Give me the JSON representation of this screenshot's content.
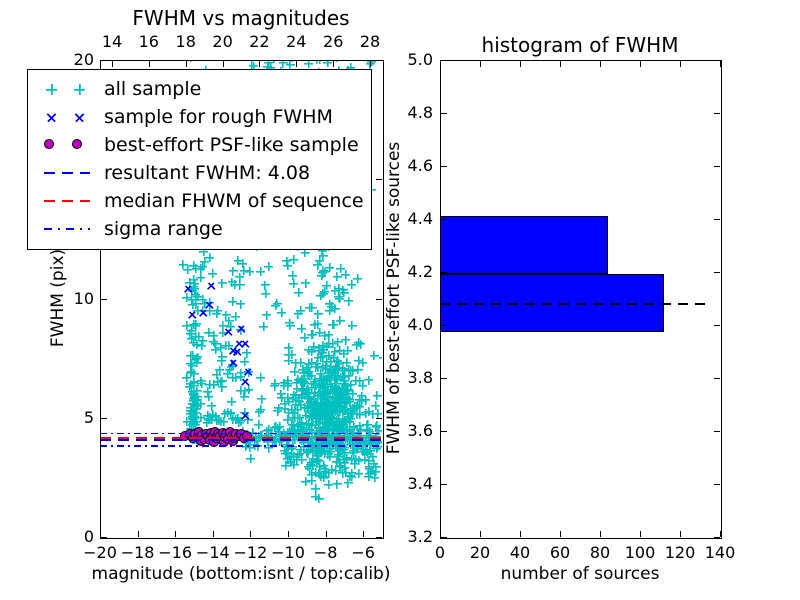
{
  "figure": {
    "background": "#ffffff"
  },
  "colors": {
    "all_sample": "#00bfbf",
    "rough_sample": "#0000ff",
    "psf_sample": "#bf00bf",
    "resultant_line": "#0000ff",
    "median_line": "#ff0000",
    "sigma_line": "#0000ff",
    "hist_bar": "#0000ff",
    "hist_marker_line": "#000000",
    "frame": "#000000"
  },
  "left_plot": {
    "title": "FWHM vs magnitudes",
    "xlabel": "magnitude (bottom:isnt / top:calib)",
    "ylabel": "FWHM (pix)",
    "xticks": {
      "values": [
        -20,
        -18,
        -16,
        -14,
        -12,
        -10,
        -8,
        -6
      ],
      "labels": [
        "−20",
        "−18",
        "−16",
        "−14",
        "−12",
        "−10",
        "−8",
        "−6"
      ]
    },
    "top_xticks": {
      "values": [
        14,
        16,
        18,
        20,
        22,
        24,
        26,
        28
      ],
      "labels": [
        "14",
        "16",
        "18",
        "20",
        "22",
        "24",
        "26",
        "28"
      ]
    },
    "yticks": {
      "values": [
        0,
        5,
        10,
        15,
        20
      ],
      "labels": [
        "0",
        "5",
        "10",
        "15",
        "20"
      ]
    },
    "legend": {
      "items": [
        {
          "marker": "plus2",
          "color": "#00bfbf",
          "label": "all sample"
        },
        {
          "marker": "x2",
          "color": "#0000ff",
          "label": "sample for rough FWHM"
        },
        {
          "marker": "dot2",
          "color": "#bf00bf",
          "label": "best-effort PSF-like sample"
        },
        {
          "marker": "dash",
          "color": "#0000ff",
          "label": "resultant FWHM: 4.08"
        },
        {
          "marker": "dash",
          "color": "#ff0000",
          "label": "median FHWM of sequence"
        },
        {
          "marker": "dashdot",
          "color": "#0000ff",
          "label": "sigma range"
        }
      ]
    }
  },
  "right_plot": {
    "title": "histogram of FWHM",
    "xlabel": "number of sources",
    "ylabel": "FWHM of best-effort PSF-like sources",
    "xticks": {
      "values": [
        0,
        20,
        40,
        60,
        80,
        100,
        120,
        140
      ],
      "labels": [
        "0",
        "20",
        "40",
        "60",
        "80",
        "100",
        "120",
        "140"
      ]
    },
    "yticks": {
      "values": [
        3.2,
        3.4,
        3.6,
        3.8,
        4.0,
        4.2,
        4.4,
        4.6,
        4.8,
        5.0
      ],
      "labels": [
        "3.2",
        "3.4",
        "3.6",
        "3.8",
        "4.0",
        "4.2",
        "4.4",
        "4.6",
        "4.8",
        "5.0"
      ]
    }
  },
  "chart_data": [
    {
      "type": "scatter",
      "title": "FWHM vs magnitudes",
      "xlabel": "magnitude (bottom:isnt / top:calib)",
      "ylabel": "FWHM (pix)",
      "xlim": [
        -20,
        -5
      ],
      "ylim": [
        0,
        20
      ],
      "top_xlim": [
        13.35,
        28.65
      ],
      "series": [
        {
          "name": "all sample",
          "marker": "plus",
          "color": "#00bfbf",
          "seed": 7,
          "generated_clusters": [
            {
              "n": 95,
              "mag": {
                "dist": "normal",
                "mean": -15.02,
                "sd": 0.13
              },
              "fwhm": {
                "dist": "power",
                "min": 4.1,
                "range": 8.6,
                "exp": 2.0
              }
            },
            {
              "n": 120,
              "mag": {
                "dist": "uniform",
                "min": -15.3,
                "max": -9.6
              },
              "fwhm": {
                "dist": "uniform",
                "min": 5,
                "max": 20.2
              }
            },
            {
              "n": 80,
              "mag": {
                "dist": "normal",
                "mean": -13.8,
                "sd": 0.9
              },
              "fwhm": {
                "dist": "power",
                "min": 4.8,
                "range": 7,
                "exp": 1.8
              }
            },
            {
              "n": 430,
              "mag": {
                "dist": "normal",
                "mean": -7.9,
                "sd": 0.95
              },
              "fwhm": {
                "dist": "normal",
                "mean": 5.4,
                "sd": 1.15
              }
            },
            {
              "n": 130,
              "mag": {
                "dist": "normal",
                "mean": -7.6,
                "sd": 0.6
              },
              "fwhm": {
                "dist": "uniform",
                "min": 6,
                "max": 20.3
              }
            },
            {
              "n": 110,
              "mag": {
                "dist": "normal",
                "mean": -8.3,
                "sd": 1.1
              },
              "fwhm": {
                "dist": "power",
                "min": 5.2,
                "range": 14.5,
                "exp": 2.2
              }
            },
            {
              "n": 170,
              "mag": {
                "dist": "uniform",
                "min": -12.4,
                "max": -5.1
              },
              "fwhm": {
                "dist": "normal",
                "mean": 4.15,
                "sd": 0.3
              }
            },
            {
              "n": 65,
              "mag": {
                "dist": "uniform",
                "min": -10.2,
                "max": -5.1
              },
              "fwhm": {
                "dist": "uniform",
                "min": 2.6,
                "max": 3.8
              }
            },
            {
              "n": 10,
              "mag": {
                "dist": "uniform",
                "min": -9.2,
                "max": -5.4
              },
              "fwhm": {
                "dist": "uniform",
                "min": 1.9,
                "max": 2.7
              }
            },
            {
              "n": 45,
              "mag": {
                "dist": "uniform",
                "min": -12.2,
                "max": -5.2
              },
              "fwhm": {
                "dist": "uniform",
                "min": 18.7,
                "max": 20.2
              }
            }
          ]
        },
        {
          "name": "sample for rough FWHM",
          "marker": "x",
          "color": "#0000ff",
          "points": [
            [
              -14.2,
              9.7
            ],
            [
              -14.5,
              9.4
            ],
            [
              -15.3,
              10.4
            ],
            [
              -15.1,
              9.3
            ],
            [
              -14.1,
              10.5
            ],
            [
              -13.2,
              8.6
            ],
            [
              -12.5,
              8.7
            ],
            [
              -12.9,
              7.8
            ],
            [
              -12.6,
              8.1
            ],
            [
              -12.3,
              8.1
            ],
            [
              -12.7,
              7.75
            ],
            [
              -12.9,
              7.3
            ],
            [
              -12.1,
              6.9
            ],
            [
              -12.3,
              6.5
            ],
            [
              -12.3,
              5.05
            ]
          ]
        },
        {
          "name": "best-effort PSF-like sample",
          "marker": "circle",
          "color": "#bf00bf",
          "points": [
            [
              -15.45,
              4.2
            ],
            [
              -15.2,
              4.28
            ],
            [
              -15.05,
              4.12
            ],
            [
              -14.9,
              4.3
            ],
            [
              -14.75,
              4.18
            ],
            [
              -14.7,
              4.38
            ],
            [
              -14.6,
              4.0
            ],
            [
              -14.55,
              4.25
            ],
            [
              -14.45,
              4.1
            ],
            [
              -14.35,
              4.32
            ],
            [
              -14.25,
              4.2
            ],
            [
              -14.15,
              4.05
            ],
            [
              -14.05,
              4.35
            ],
            [
              -13.95,
              4.22
            ],
            [
              -13.9,
              3.98
            ],
            [
              -13.85,
              4.4
            ],
            [
              -13.8,
              4.12
            ],
            [
              -13.7,
              4.3
            ],
            [
              -13.6,
              4.2
            ],
            [
              -13.5,
              4.05
            ],
            [
              -13.45,
              4.35
            ],
            [
              -13.4,
              3.97
            ],
            [
              -13.35,
              4.18
            ],
            [
              -13.25,
              4.28
            ],
            [
              -13.15,
              4.1
            ],
            [
              -13.05,
              4.38
            ],
            [
              -12.95,
              4.22
            ],
            [
              -12.9,
              4.0
            ],
            [
              -12.85,
              4.12
            ],
            [
              -12.75,
              4.3
            ],
            [
              -12.6,
              4.2
            ],
            [
              -12.45,
              4.28
            ],
            [
              -12.3,
              4.15
            ],
            [
              -12.15,
              4.22
            ]
          ]
        }
      ],
      "lines": [
        {
          "name": "resultant FWHM",
          "style": "dashed",
          "color": "#0000ff",
          "y": 4.08
        },
        {
          "name": "median FHWM of sequence",
          "style": "dashed",
          "color": "#ff0000",
          "y": 4.15
        },
        {
          "name": "sigma range",
          "style": "dashdot",
          "color": "#0000ff",
          "y": [
            3.81,
            4.35
          ]
        }
      ],
      "legend_position": "upper left"
    },
    {
      "type": "bar",
      "orientation": "horizontal",
      "title": "histogram of FWHM",
      "xlabel": "number of sources",
      "ylabel": "FWHM of best-effort PSF-like sources",
      "xlim": [
        0,
        140
      ],
      "ylim": [
        3.2,
        5.0
      ],
      "bin_edges": [
        3.975,
        4.1925,
        4.41
      ],
      "counts": [
        112,
        84
      ],
      "bar_color": "#0000ff",
      "marker_line": {
        "y": 4.08,
        "style": "dashed",
        "color": "#000000"
      }
    }
  ]
}
